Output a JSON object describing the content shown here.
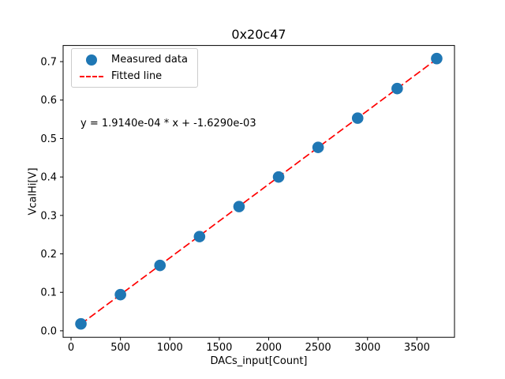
{
  "chart_data": {
    "type": "scatter",
    "title": "0x20c47",
    "xlabel": "DACs_input[Count]",
    "ylabel": "VcalHi[V]",
    "x": [
      100,
      500,
      900,
      1300,
      1700,
      2100,
      2500,
      2900,
      3300,
      3700
    ],
    "y": [
      0.018,
      0.094,
      0.17,
      0.245,
      0.323,
      0.4,
      0.477,
      0.553,
      0.63,
      0.708
    ],
    "fit": {
      "slope": 0.0001914,
      "intercept": -0.001629
    },
    "annotation": "y = 1.9140e-04 * x + -1.6290e-03",
    "legend": [
      {
        "label": "Measured data",
        "type": "marker",
        "color": "#1f77b4"
      },
      {
        "label": "Fitted line",
        "type": "dashed-line",
        "color": "#ff0000"
      }
    ],
    "xlim": [
      -80,
      3880
    ],
    "ylim": [
      -0.017,
      0.742
    ],
    "xticks": [
      0,
      500,
      1000,
      1500,
      2000,
      2500,
      3000,
      3500
    ],
    "xtick_labels": [
      "0",
      "500",
      "1000",
      "1500",
      "2000",
      "2500",
      "3000",
      "3500"
    ],
    "yticks": [
      0.0,
      0.1,
      0.2,
      0.3,
      0.4,
      0.5,
      0.6,
      0.7
    ],
    "ytick_labels": [
      "0.0",
      "0.1",
      "0.2",
      "0.3",
      "0.4",
      "0.5",
      "0.6",
      "0.7"
    ],
    "colors": {
      "marker": "#1f77b4",
      "line": "#ff0000",
      "spine": "#000000",
      "tick_label": "#000000"
    },
    "grid": false,
    "legend_position": "upper-left"
  }
}
